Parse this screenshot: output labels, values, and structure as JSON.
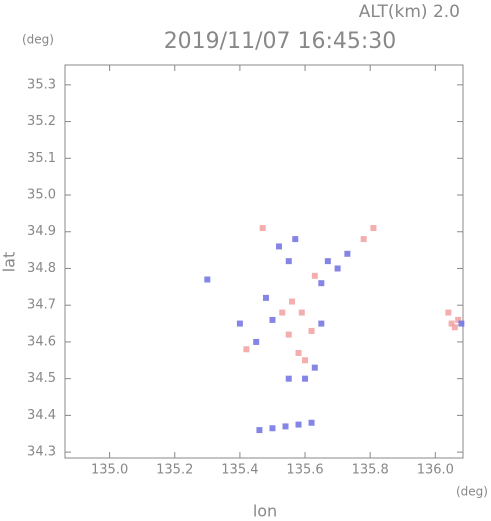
{
  "chart_data": {
    "type": "scatter",
    "title": "2019/11/07 16:45:30",
    "subtitle": "ALT(km) 2.0",
    "x_label": "lon",
    "y_label": "lat",
    "x_unit": "(deg)",
    "y_unit": "(deg)",
    "xlim": [
      134.863,
      136.085
    ],
    "ylim": [
      34.284,
      35.354
    ],
    "xticks": [
      {
        "value": 135,
        "label": "135.0"
      },
      135.2,
      135.4,
      135.6,
      135.8,
      {
        "value": 136,
        "label": "136.0"
      }
    ],
    "yticks": [
      34.3,
      34.4,
      34.5,
      34.6,
      34.7,
      34.8,
      34.9,
      {
        "value": 35,
        "label": "35.0"
      },
      35.1,
      35.2,
      35.3
    ],
    "series": [
      {
        "color": "#f2a0a0",
        "x": [
          136.07,
          136.05,
          136.06,
          136.04,
          135.78,
          135.81,
          135.63,
          135.56,
          135.55,
          135.58,
          135.6,
          135.62,
          135.42,
          135.47,
          135.53,
          135.59
        ],
        "y": [
          34.66,
          34.65,
          34.64,
          34.68,
          34.88,
          34.91,
          34.78,
          34.71,
          34.62,
          34.57,
          34.55,
          34.63,
          34.58,
          34.91,
          34.68,
          34.68
        ]
      },
      {
        "color": "#7070e0",
        "x": [
          135.46,
          135.5,
          135.54,
          135.58,
          135.62,
          135.3,
          135.52,
          135.55,
          135.57,
          135.67,
          135.7,
          135.73,
          135.65,
          135.4,
          135.45,
          135.5,
          135.65,
          135.6,
          135.55,
          135.63,
          136.08,
          135.48
        ],
        "y": [
          34.36,
          34.365,
          34.37,
          34.375,
          34.38,
          34.77,
          34.86,
          34.82,
          34.88,
          34.82,
          34.8,
          34.84,
          34.76,
          34.65,
          34.6,
          34.66,
          34.65,
          34.5,
          34.5,
          34.53,
          34.65,
          34.72
        ]
      }
    ]
  }
}
